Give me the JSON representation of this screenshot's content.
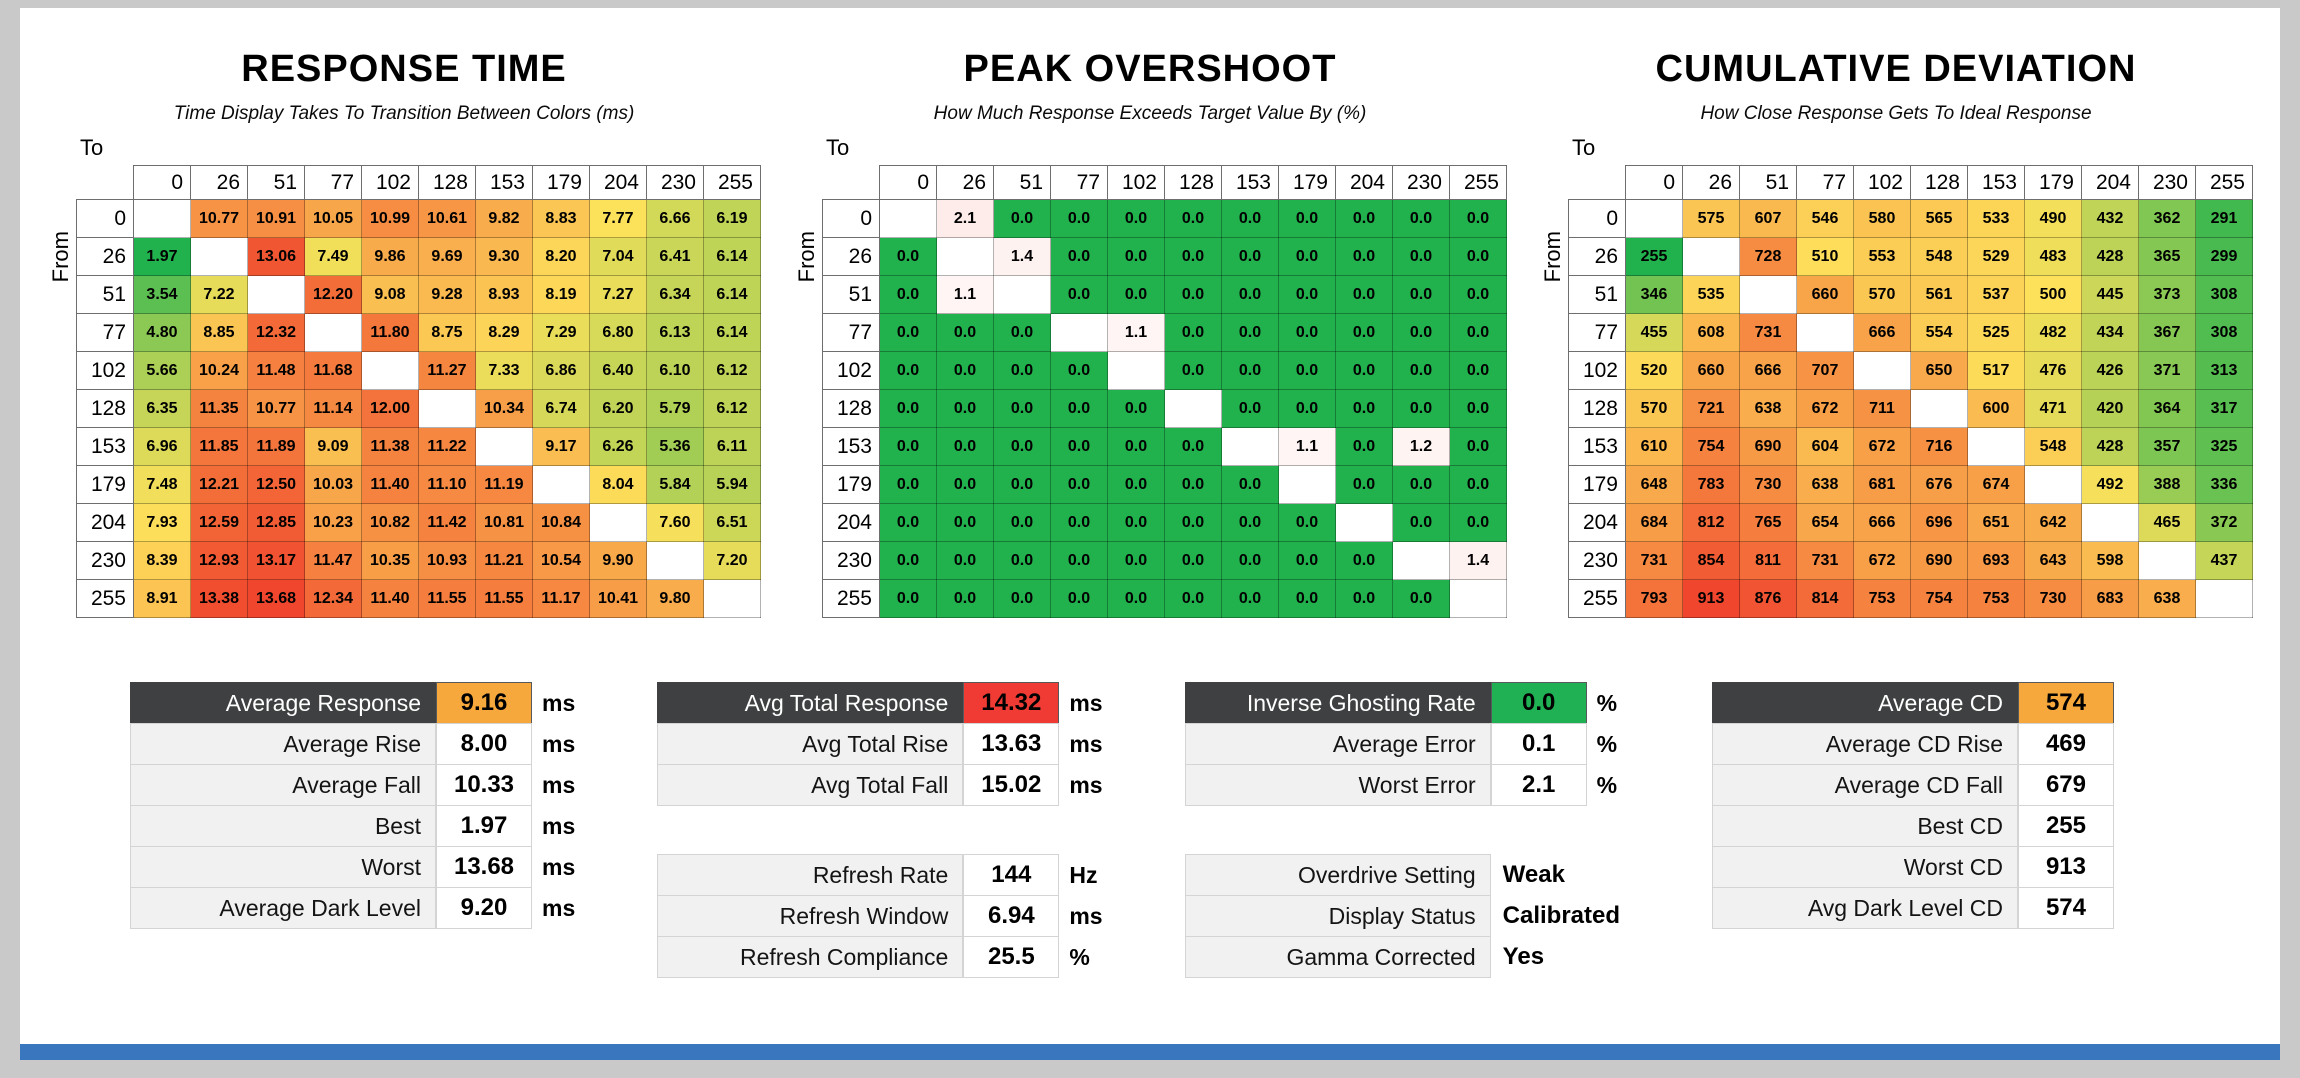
{
  "colors": {
    "orange": "#F6A83C",
    "red": "#EF3B33",
    "green": "#1FB153",
    "accent_bar": "#3A76BD",
    "dark_header": "#3F4041"
  },
  "chart_data": [
    {
      "type": "heatmap",
      "title": "RESPONSE TIME",
      "subtitle": "Time Display Takes To Transition Between Colors (ms)",
      "units": "ms",
      "axis": {
        "x": "To",
        "y": "From"
      },
      "categories": [
        "0",
        "26",
        "51",
        "77",
        "102",
        "128",
        "153",
        "179",
        "204",
        "230",
        "255"
      ],
      "rows": [
        [
          null,
          "10.77",
          "10.91",
          "10.05",
          "10.99",
          "10.61",
          "9.82",
          "8.83",
          "7.77",
          "6.66",
          "6.19"
        ],
        [
          "1.97",
          null,
          "13.06",
          "7.49",
          "9.86",
          "9.69",
          "9.30",
          "8.20",
          "7.04",
          "6.41",
          "6.14"
        ],
        [
          "3.54",
          "7.22",
          null,
          "12.20",
          "9.08",
          "9.28",
          "8.93",
          "8.19",
          "7.27",
          "6.34",
          "6.14"
        ],
        [
          "4.80",
          "8.85",
          "12.32",
          null,
          "11.80",
          "8.75",
          "8.29",
          "7.29",
          "6.80",
          "6.13",
          "6.14"
        ],
        [
          "5.66",
          "10.24",
          "11.48",
          "11.68",
          null,
          "11.27",
          "7.33",
          "6.86",
          "6.40",
          "6.10",
          "6.12"
        ],
        [
          "6.35",
          "11.35",
          "10.77",
          "11.14",
          "12.00",
          null,
          "10.34",
          "6.74",
          "6.20",
          "5.79",
          "6.12"
        ],
        [
          "6.96",
          "11.85",
          "11.89",
          "9.09",
          "11.38",
          "11.22",
          null,
          "9.17",
          "6.26",
          "5.36",
          "6.11"
        ],
        [
          "7.48",
          "12.21",
          "12.50",
          "10.03",
          "11.40",
          "11.10",
          "11.19",
          null,
          "8.04",
          "5.84",
          "5.94"
        ],
        [
          "7.93",
          "12.59",
          "12.85",
          "10.23",
          "10.82",
          "11.42",
          "10.81",
          "10.84",
          null,
          "7.60",
          "6.51"
        ],
        [
          "8.39",
          "12.93",
          "13.17",
          "11.47",
          "10.35",
          "10.93",
          "11.21",
          "10.54",
          "9.90",
          null,
          "7.20"
        ],
        [
          "8.91",
          "13.38",
          "13.68",
          "12.34",
          "11.40",
          "11.55",
          "11.55",
          "11.17",
          "10.41",
          "9.80",
          null
        ]
      ],
      "colormap": {
        "kind": "three-stop",
        "minVal": 1.97,
        "midVal": 7.8,
        "maxVal": 13.68,
        "lowColor": "#21B24D",
        "midColor": "#FDE15B",
        "highColor": "#F0462E"
      }
    },
    {
      "type": "heatmap",
      "title": "PEAK OVERSHOOT",
      "subtitle": "How Much Response Exceeds Target Value By (%)",
      "units": "%",
      "axis": {
        "x": "To",
        "y": "From"
      },
      "categories": [
        "0",
        "26",
        "51",
        "77",
        "102",
        "128",
        "153",
        "179",
        "204",
        "230",
        "255"
      ],
      "rows": [
        [
          null,
          "2.1",
          "0.0",
          "0.0",
          "0.0",
          "0.0",
          "0.0",
          "0.0",
          "0.0",
          "0.0",
          "0.0"
        ],
        [
          "0.0",
          null,
          "1.4",
          "0.0",
          "0.0",
          "0.0",
          "0.0",
          "0.0",
          "0.0",
          "0.0",
          "0.0"
        ],
        [
          "0.0",
          "1.1",
          null,
          "0.0",
          "0.0",
          "0.0",
          "0.0",
          "0.0",
          "0.0",
          "0.0",
          "0.0"
        ],
        [
          "0.0",
          "0.0",
          "0.0",
          null,
          "1.1",
          "0.0",
          "0.0",
          "0.0",
          "0.0",
          "0.0",
          "0.0"
        ],
        [
          "0.0",
          "0.0",
          "0.0",
          "0.0",
          null,
          "0.0",
          "0.0",
          "0.0",
          "0.0",
          "0.0",
          "0.0"
        ],
        [
          "0.0",
          "0.0",
          "0.0",
          "0.0",
          "0.0",
          null,
          "0.0",
          "0.0",
          "0.0",
          "0.0",
          "0.0"
        ],
        [
          "0.0",
          "0.0",
          "0.0",
          "0.0",
          "0.0",
          "0.0",
          null,
          "1.1",
          "0.0",
          "1.2",
          "0.0"
        ],
        [
          "0.0",
          "0.0",
          "0.0",
          "0.0",
          "0.0",
          "0.0",
          "0.0",
          null,
          "0.0",
          "0.0",
          "0.0"
        ],
        [
          "0.0",
          "0.0",
          "0.0",
          "0.0",
          "0.0",
          "0.0",
          "0.0",
          "0.0",
          null,
          "0.0",
          "0.0"
        ],
        [
          "0.0",
          "0.0",
          "0.0",
          "0.0",
          "0.0",
          "0.0",
          "0.0",
          "0.0",
          "0.0",
          null,
          "1.4"
        ],
        [
          "0.0",
          "0.0",
          "0.0",
          "0.0",
          "0.0",
          "0.0",
          "0.0",
          "0.0",
          "0.0",
          "0.0",
          null
        ]
      ],
      "colormap": {
        "kind": "zero-green",
        "zeroColor": "#21B24D",
        "lowColor": "#FFFFFF",
        "highColor": "#F0462E",
        "span": 20
      }
    },
    {
      "type": "heatmap",
      "title": "CUMULATIVE DEVIATION",
      "subtitle": "How Close Response Gets To Ideal Response",
      "units": "",
      "axis": {
        "x": "To",
        "y": "From"
      },
      "categories": [
        "0",
        "26",
        "51",
        "77",
        "102",
        "128",
        "153",
        "179",
        "204",
        "230",
        "255"
      ],
      "rows": [
        [
          null,
          "575",
          "607",
          "546",
          "580",
          "565",
          "533",
          "490",
          "432",
          "362",
          "291"
        ],
        [
          "255",
          null,
          "728",
          "510",
          "553",
          "548",
          "529",
          "483",
          "428",
          "365",
          "299"
        ],
        [
          "346",
          "535",
          null,
          "660",
          "570",
          "561",
          "537",
          "500",
          "445",
          "373",
          "308"
        ],
        [
          "455",
          "608",
          "731",
          null,
          "666",
          "554",
          "525",
          "482",
          "434",
          "367",
          "308"
        ],
        [
          "520",
          "660",
          "666",
          "707",
          null,
          "650",
          "517",
          "476",
          "426",
          "371",
          "313"
        ],
        [
          "570",
          "721",
          "638",
          "672",
          "711",
          null,
          "600",
          "471",
          "420",
          "364",
          "317"
        ],
        [
          "610",
          "754",
          "690",
          "604",
          "672",
          "716",
          null,
          "548",
          "428",
          "357",
          "325"
        ],
        [
          "648",
          "783",
          "730",
          "638",
          "681",
          "676",
          "674",
          null,
          "492",
          "388",
          "336"
        ],
        [
          "684",
          "812",
          "765",
          "654",
          "666",
          "696",
          "651",
          "642",
          null,
          "465",
          "372"
        ],
        [
          "731",
          "854",
          "811",
          "731",
          "672",
          "690",
          "693",
          "643",
          "598",
          null,
          "437"
        ],
        [
          "793",
          "913",
          "876",
          "814",
          "753",
          "754",
          "753",
          "730",
          "683",
          "638",
          null
        ]
      ],
      "colormap": {
        "kind": "three-stop",
        "minVal": 255,
        "midVal": 500,
        "maxVal": 913,
        "lowColor": "#21B24D",
        "midColor": "#FDE15B",
        "highColor": "#F0462E"
      }
    }
  ],
  "summary_tables": [
    {
      "rows": [
        {
          "label": "Average Response",
          "value": "9.16",
          "unit": "ms",
          "emphasis": "orange"
        },
        {
          "label": "Average Rise",
          "value": "8.00",
          "unit": "ms"
        },
        {
          "label": "Average Fall",
          "value": "10.33",
          "unit": "ms"
        },
        {
          "label": "Best",
          "value": "1.97",
          "unit": "ms"
        },
        {
          "label": "Worst",
          "value": "13.68",
          "unit": "ms"
        },
        {
          "label": "Average Dark Level",
          "value": "9.20",
          "unit": "ms"
        }
      ]
    },
    {
      "rows": [
        {
          "label": "Avg Total Response",
          "value": "14.32",
          "unit": "ms",
          "emphasis": "red"
        },
        {
          "label": "Avg Total Rise",
          "value": "13.63",
          "unit": "ms"
        },
        {
          "label": "Avg Total Fall",
          "value": "15.02",
          "unit": "ms"
        },
        {
          "label": "Refresh Rate",
          "value": "144",
          "unit": "Hz",
          "gap": true
        },
        {
          "label": "Refresh Window",
          "value": "6.94",
          "unit": "ms"
        },
        {
          "label": "Refresh Compliance",
          "value": "25.5",
          "unit": "%"
        }
      ]
    },
    {
      "rows": [
        {
          "label": "Inverse Ghosting Rate",
          "value": "0.0",
          "unit": "%",
          "emphasis": "green"
        },
        {
          "label": "Average Error",
          "value": "0.1",
          "unit": "%"
        },
        {
          "label": "Worst Error",
          "value": "2.1",
          "unit": "%"
        },
        {
          "label": "Overdrive Setting",
          "value": "Weak",
          "text_only": true,
          "gap": true
        },
        {
          "label": "Display Status",
          "value": "Calibrated",
          "text_only": true
        },
        {
          "label": "Gamma Corrected",
          "value": "Yes",
          "text_only": true
        }
      ]
    },
    {
      "rows": [
        {
          "label": "Average CD",
          "value": "574",
          "unit": "",
          "emphasis": "orange"
        },
        {
          "label": "Average CD Rise",
          "value": "469",
          "unit": ""
        },
        {
          "label": "Average CD Fall",
          "value": "679",
          "unit": ""
        },
        {
          "label": "Best CD",
          "value": "255",
          "unit": ""
        },
        {
          "label": "Worst CD",
          "value": "913",
          "unit": ""
        },
        {
          "label": "Avg Dark Level CD",
          "value": "574",
          "unit": ""
        }
      ]
    }
  ]
}
